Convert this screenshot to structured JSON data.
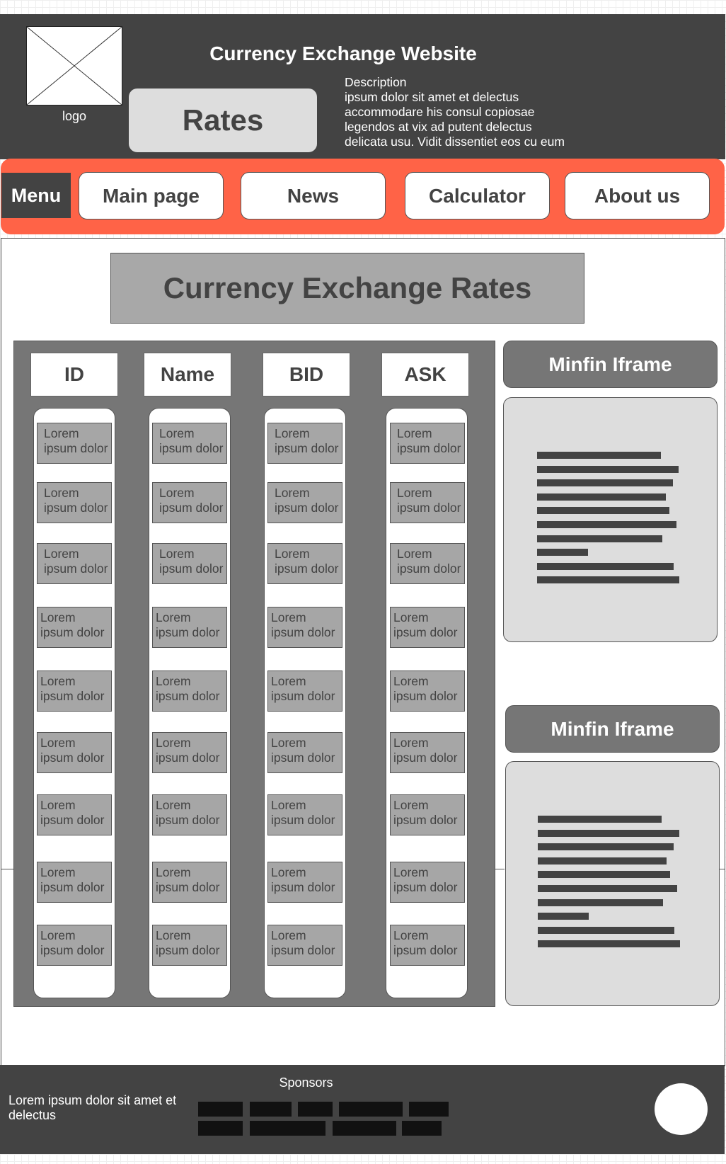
{
  "header": {
    "logo_label": "logo",
    "site_title": "Currency Exchange Website",
    "rates_label": "Rates",
    "description_lines": [
      "Description",
      "ipsum dolor sit amet et delectus",
      "accommodare his consul copiosae",
      "legendos at vix ad putent delectus",
      "delicata usu. Vidit dissentiet eos cu eum"
    ]
  },
  "nav": {
    "menu_label": "Menu",
    "items": [
      "Main page",
      "News",
      "Calculator",
      "About us"
    ]
  },
  "main": {
    "heading": "Currency Exchange Rates",
    "table": {
      "columns": [
        "ID",
        "Name",
        "BID",
        "ASK"
      ],
      "cells": [
        [
          "Lorem\nipsum dolor",
          "Lorem\nipsum dolor",
          "Lorem\nipsum dolor",
          "Lorem\nipsum dolor"
        ],
        [
          "Lorem\nipsum dolor",
          "Lorem\nipsum dolor",
          "Lorem\nipsum dolor",
          "Lorem\nipsum dolor"
        ],
        [
          "Lorem\nipsum dolor",
          "Lorem\nipsum dolor",
          "Lorem\nipsum dolor",
          "Lorem\nipsum dolor"
        ],
        [
          "Lorem\nipsum dolor",
          "Lorem\nipsum dolor",
          "Lorem\nipsum dolor",
          "Lorem\nipsum dolor"
        ],
        [
          "Lorem\nipsum dolor",
          "Lorem\nipsum dolor",
          "Lorem\nipsum dolor",
          "Lorem\nipsum dolor"
        ],
        [
          "Lorem\nipsum dolor",
          "Lorem\nipsum dolor",
          "Lorem\nipsum dolor",
          "Lorem\nipsum dolor"
        ],
        [
          "Lorem\nipsum dolor",
          "Lorem\nipsum dolor",
          "Lorem\nipsum dolor",
          "Lorem\nipsum dolor"
        ],
        [
          "Lorem\nipsum dolor",
          "Lorem\nipsum dolor",
          "Lorem\nipsum dolor",
          "Lorem\nipsum dolor"
        ],
        [
          "Lorem\nipsum dolor",
          "Lorem\nipsum dolor",
          "Lorem\nipsum dolor",
          "Lorem\nipsum dolor"
        ]
      ]
    },
    "iframes": [
      {
        "title": "Minfin Iframe",
        "lines": 10
      },
      {
        "title": "Minfin Iframe",
        "lines": 10
      }
    ]
  },
  "footer": {
    "sponsors_label": "Sponsors",
    "text": "Lorem ipsum dolor sit amet et delectus",
    "sponsor_logo_count": 9
  },
  "colors": {
    "dark": "#434343",
    "accent": "#ff6347",
    "panel": "#767676",
    "cell": "#a6a6a6",
    "light": "#dddddd"
  }
}
